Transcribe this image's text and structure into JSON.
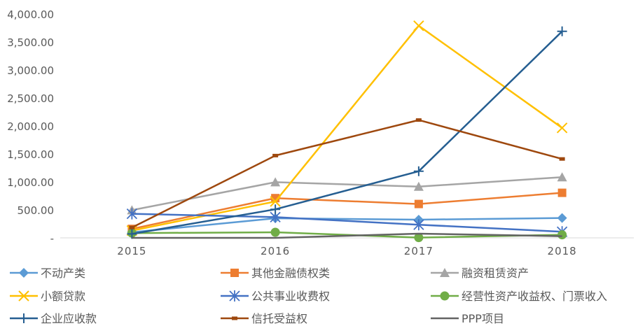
{
  "chart_data": {
    "type": "line",
    "categories": [
      "2015",
      "2016",
      "2017",
      "2018"
    ],
    "y_ticks": [
      "-",
      "500.00",
      "1,000.00",
      "1,500.00",
      "2,000.00",
      "2,500.00",
      "3,000.00",
      "3,500.00",
      "4,000.00"
    ],
    "ylim": [
      0,
      4000
    ],
    "grid": false,
    "legend_position": "bottom",
    "series": [
      {
        "name": "不动产类",
        "color": "#5B9BD5",
        "marker": "diamond",
        "values": [
          100,
          350,
          325,
          355
        ]
      },
      {
        "name": "其他金融债权类",
        "color": "#ED7D31",
        "marker": "square",
        "values": [
          160,
          710,
          605,
          805
        ]
      },
      {
        "name": "融资租赁资产",
        "color": "#A5A5A5",
        "marker": "triangle",
        "values": [
          495,
          995,
          915,
          1085
        ]
      },
      {
        "name": "小额贷款",
        "color": "#FFC000",
        "marker": "x",
        "values": [
          130,
          650,
          3790,
          1965
        ]
      },
      {
        "name": "公共事业收费权",
        "color": "#4472C4",
        "marker": "star",
        "values": [
          430,
          370,
          235,
          110
        ]
      },
      {
        "name": "经营性资产收益权、门票收入",
        "color": "#70AD47",
        "marker": "circle",
        "values": [
          85,
          100,
          5,
          55
        ]
      },
      {
        "name": "企业应收款",
        "color": "#255E91",
        "marker": "plus",
        "values": [
          70,
          510,
          1190,
          3690
        ]
      },
      {
        "name": "信托受益权",
        "color": "#9E480E",
        "marker": "dash",
        "values": [
          185,
          1470,
          2105,
          1410
        ]
      },
      {
        "name": "PPP项目",
        "color": "#636363",
        "marker": "none",
        "values": [
          0,
          0,
          75,
          30
        ]
      }
    ]
  }
}
